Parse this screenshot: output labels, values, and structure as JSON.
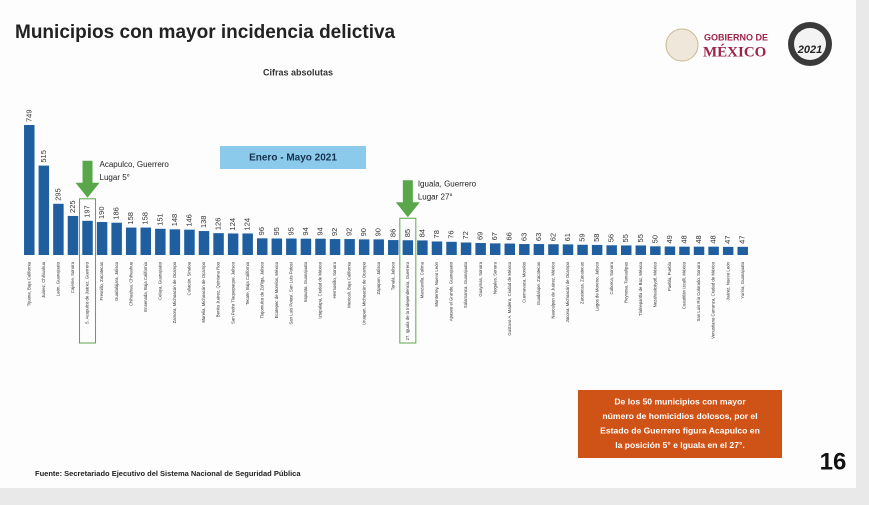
{
  "chart_data": {
    "type": "bar",
    "title": "Municipios con mayor incidencia delictiva",
    "subtitle": "Cifras absolutas",
    "period": "Enero - Mayo 2021",
    "categories": [
      "Tijuana, Baja California",
      "Juárez, Chihuahua",
      "León, Guanajuato",
      "Cajeme, Sonora",
      "5. Acapulco de Juárez, Guerrero",
      "Fresnillo, Zacatecas",
      "Guadalajara, Jalisco",
      "Chihuahua, Chihuahua",
      "Ensenada, Baja California",
      "Celaya, Guanajuato",
      "Zamora, Michoacán de Ocampo",
      "Culiacán, Sinaloa",
      "Morelia, Michoacán de Ocampo",
      "Benito Juárez, Quintana Roo",
      "San Pedro Tlaquepaque, Jalisco",
      "Tecate, Baja California",
      "Tlajomulco de Zúñiga, Jalisco",
      "Ecatepec de Morelos, México",
      "San Luis Potosí, San Luis Potosí",
      "Irapuato, Guanajuato",
      "Iztapalapa, Ciudad de México",
      "Hermosillo, Sonora",
      "Mexicali, Baja California",
      "Uruapan, Michoacán de Ocampo",
      "Zapopan, Jalisco",
      "Tonalá, Jalisco",
      "27. Iguala de la Independencia, Guerrero",
      "Manzanillo, Colima",
      "Monterrey, Nuevo León",
      "Apaseo el Grande, Guanajuato",
      "Salamanca, Guanajuato",
      "Guaymas, Sonora",
      "Nogales, Sonora",
      "Gustavo A. Madero, Ciudad de México",
      "Cuernavaca, Morelos",
      "Guadalupe, Zacatecas",
      "Naucalpan de Juárez, México",
      "Jacona, Michoacán de Ocampo",
      "Zacatecas, Zacatecas",
      "Lagos de Moreno, Jalisco",
      "Caborca, Sonora",
      "Reynosa, Tamaulipas",
      "Tlalnepantla de Baz, México",
      "Nezahualcóyotl, México",
      "Puebla, Puebla",
      "Cuautitlán Izcalli, México",
      "San Luis Río Colorado, Sonora",
      "Venustiano Carranza, Ciudad de México",
      "Juárez, Nuevo León",
      "Yuriria, Guanajuato"
    ],
    "values": [
      749,
      515,
      295,
      225,
      197,
      190,
      186,
      158,
      158,
      151,
      148,
      146,
      138,
      126,
      124,
      124,
      96,
      95,
      95,
      94,
      94,
      92,
      92,
      90,
      90,
      86,
      85,
      84,
      78,
      76,
      72,
      69,
      67,
      66,
      63,
      63,
      62,
      61,
      59,
      58,
      56,
      55,
      55,
      50,
      49,
      48,
      48,
      48,
      47,
      47
    ],
    "color": "#1f5fa0",
    "highlight_color": "#5aa64a",
    "callouts": [
      {
        "index": 4,
        "lines": [
          "Acapulco, Guerrero",
          "Lugar 5°"
        ]
      },
      {
        "index": 26,
        "lines": [
          "Iguala, Guerrero",
          "Lugar 27°"
        ]
      }
    ],
    "note": [
      "De los 50 municipios con mayor",
      "número de homicidios dolosos, por el",
      "Estado de Guerrero figura Acapulco en",
      "la posición 5° e Iguala en el 27°."
    ],
    "source": "Fuente: Secretariado Ejecutivo del Sistema Nacional de Seguridad Pública",
    "page_number": "16",
    "logo": {
      "line1": "GOBIERNO DE",
      "line2": "MÉXICO",
      "year": "2021"
    }
  }
}
